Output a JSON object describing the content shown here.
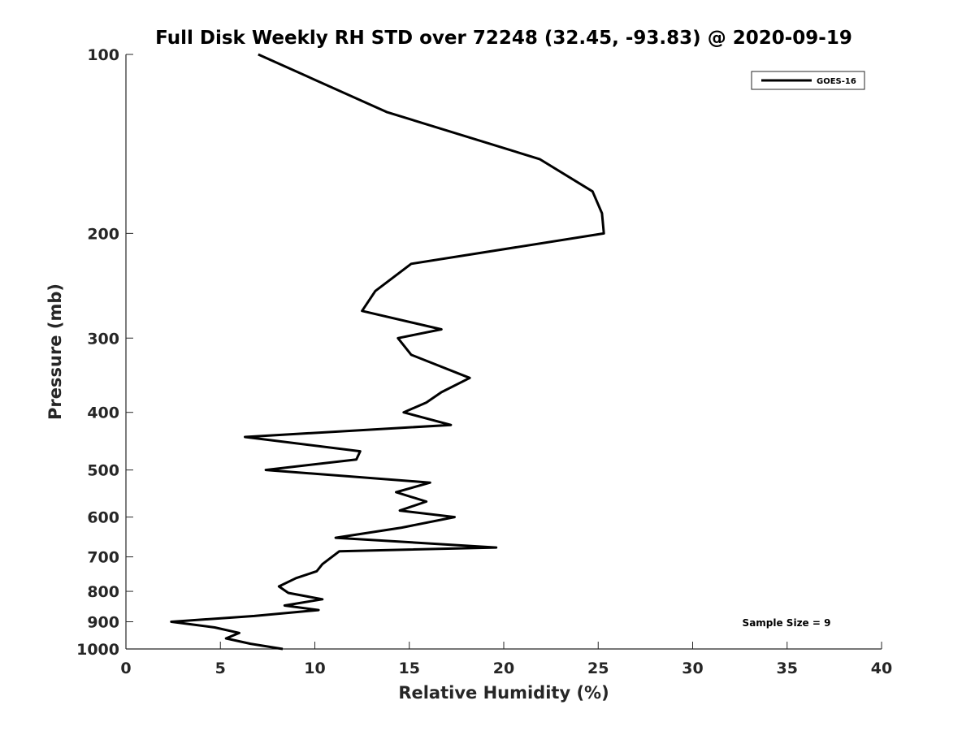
{
  "chart_data": {
    "type": "line",
    "title": "Full Disk Weekly RH STD over 72248 (32.45, -93.83) @ 2020-09-19",
    "xlabel": "Relative Humidity (%)",
    "ylabel": "Pressure (mb)",
    "xlim": [
      0,
      40
    ],
    "ylim": [
      100,
      1000
    ],
    "y_scale": "log",
    "y_reversed": true,
    "xticks": [
      0,
      5,
      10,
      15,
      20,
      25,
      30,
      35,
      40
    ],
    "xtick_labels": [
      "0",
      "5",
      "10",
      "15",
      "20",
      "25",
      "30",
      "35",
      "40"
    ],
    "yticks": [
      100,
      200,
      300,
      400,
      500,
      600,
      700,
      800,
      900,
      1000
    ],
    "ytick_labels": [
      "100",
      "200",
      "300",
      "400",
      "500",
      "600",
      "700",
      "800",
      "900",
      "1000"
    ],
    "grid": false,
    "legend_position": "top-right",
    "annotation": "Sample Size = 9",
    "series": [
      {
        "name": "GOES-16",
        "color": "#000000",
        "x": [
          7.0,
          13.8,
          21.9,
          24.7,
          25.2,
          25.3,
          15.1,
          13.2,
          12.5,
          16.7,
          14.4,
          15.1,
          18.2,
          16.7,
          15.9,
          14.7,
          17.2,
          6.3,
          12.4,
          12.2,
          7.4,
          16.1,
          14.3,
          15.9,
          14.5,
          17.4,
          14.6,
          11.1,
          19.6,
          11.3,
          10.4,
          10.1,
          9.0,
          8.1,
          8.6,
          10.4,
          8.4,
          10.2,
          6.8,
          2.4,
          4.7,
          6.0,
          5.3,
          6.6,
          8.3
        ],
        "y": [
          100,
          125,
          150,
          170,
          185,
          200,
          225,
          250,
          270,
          290,
          300,
          320,
          350,
          370,
          385,
          400,
          420,
          440,
          465,
          480,
          500,
          525,
          545,
          565,
          585,
          600,
          625,
          650,
          675,
          685,
          720,
          740,
          760,
          785,
          805,
          825,
          845,
          860,
          880,
          900,
          920,
          940,
          960,
          980,
          1000
        ]
      }
    ]
  }
}
